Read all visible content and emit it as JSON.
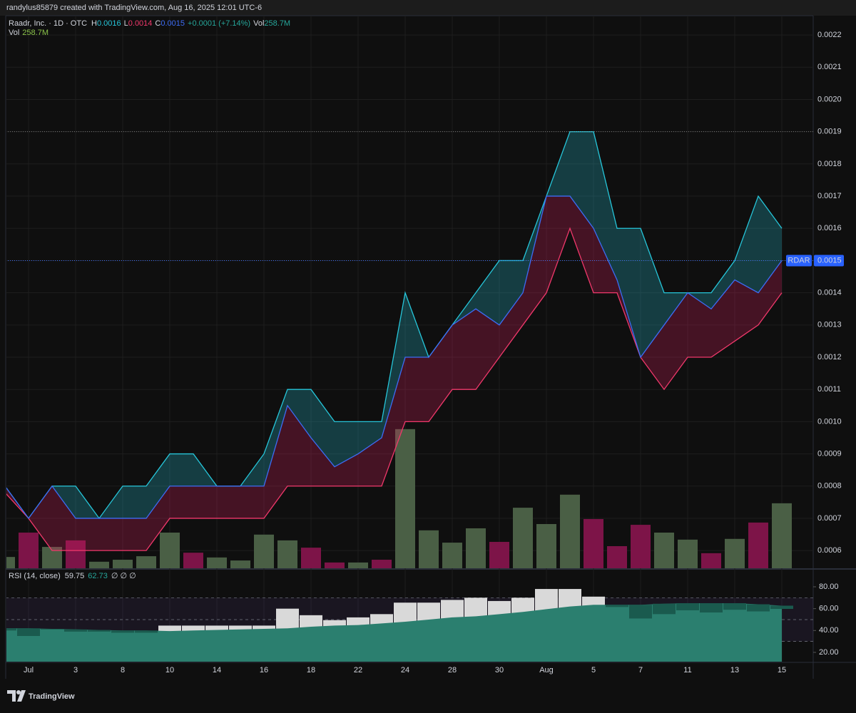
{
  "header": {
    "attribution": "randylus85879 created with TradingView.com, Aug 16, 2025 12:01 UTC-6"
  },
  "footer": {
    "brand": "TradingView"
  },
  "chart_data": {
    "type": "line",
    "symbol": "Raadr, Inc. · 1D · OTC",
    "change": "+0.0001 (+7.14%)",
    "ticker": "RDAR",
    "last_price": 0.0015,
    "high_line": 0.0019,
    "categories": [
      null,
      "Jul",
      null,
      "3",
      null,
      "8",
      null,
      "10",
      null,
      "14",
      null,
      "16",
      null,
      "18",
      null,
      "22",
      null,
      "24",
      null,
      "28",
      null,
      "30",
      null,
      "Aug",
      null,
      "5",
      null,
      "7",
      null,
      "11",
      null,
      "13",
      null,
      "15"
    ],
    "series": [
      {
        "name": "H",
        "color": "#26c6da",
        "values": [
          0.0008,
          0.0007,
          0.0008,
          0.0008,
          0.0007,
          0.0008,
          0.0008,
          0.0009,
          0.0009,
          0.0008,
          0.0008,
          0.0009,
          0.0011,
          0.0011,
          0.001,
          0.001,
          0.001,
          0.0014,
          0.0012,
          0.0013,
          0.0014,
          0.0015,
          0.0015,
          0.0017,
          0.0019,
          0.0019,
          0.0016,
          0.0016,
          0.0014,
          0.0014,
          0.0014,
          0.0015,
          0.0017,
          0.0016
        ]
      },
      {
        "name": "L",
        "color": "#f0386b",
        "values": [
          0.00078,
          0.0007,
          0.0006,
          0.0006,
          0.0006,
          0.0006,
          0.0006,
          0.0007,
          0.0007,
          0.0007,
          0.0007,
          0.0007,
          0.0008,
          0.0008,
          0.0008,
          0.0008,
          0.0008,
          0.001,
          0.001,
          0.0011,
          0.0011,
          0.0012,
          0.0013,
          0.0014,
          0.0016,
          0.0014,
          0.0014,
          0.0012,
          0.0011,
          0.0012,
          0.0012,
          0.00125,
          0.0013,
          0.0014
        ]
      },
      {
        "name": "C",
        "color": "#3d6cf5",
        "values": [
          0.0008,
          0.0007,
          0.0008,
          0.0007,
          0.0007,
          0.0007,
          0.0007,
          0.0008,
          0.0008,
          0.0008,
          0.0008,
          0.0008,
          0.00105,
          0.00095,
          0.00086,
          0.0009,
          0.00095,
          0.0012,
          0.0012,
          0.0013,
          0.00135,
          0.0013,
          0.0014,
          0.0017,
          0.0017,
          0.0016,
          0.00144,
          0.0012,
          0.0013,
          0.0014,
          0.00135,
          0.00144,
          0.0014,
          0.0015
        ]
      }
    ],
    "ylim": [
      0.000545,
      0.00226
    ],
    "yticks": [
      0.0006,
      0.0007,
      0.0008,
      0.0009,
      {
        "value": 0.001,
        "label": "0.0010"
      },
      0.0011,
      0.0012,
      0.0013,
      0.0014,
      0.0015,
      0.0016,
      0.0017,
      0.0018,
      0.0019,
      {
        "value": 0.002,
        "label": "0.0020"
      },
      0.0021,
      0.0022
    ],
    "grid": true,
    "volume": {
      "name": "Vol",
      "legend_value": "258.7M",
      "ylim": [
        0,
        2200
      ],
      "values": [
        45,
        142,
        85,
        111,
        26,
        34,
        48,
        142,
        62,
        43,
        31,
        134,
        111,
        82,
        23,
        23,
        34,
        554,
        151,
        102,
        159,
        105,
        241,
        176,
        293,
        196,
        88,
        173,
        142,
        114,
        60,
        117,
        182,
        258.7
      ],
      "colors": [
        "#4a5f45",
        "#7d1448",
        "#4a5f45",
        "#7d1448",
        "#4a5f45",
        "#4a5f45",
        "#4a5f45",
        "#4a5f45",
        "#7d1448",
        "#4a5f45",
        "#4a5f45",
        "#4a5f45",
        "#4a5f45",
        "#7d1448",
        "#7d1448",
        "#4a5f45",
        "#7d1448",
        "#4a5f45",
        "#4a5f45",
        "#4a5f45",
        "#4a5f45",
        "#7d1448",
        "#4a5f45",
        "#4a5f45",
        "#4a5f45",
        "#7d1448",
        "#7d1448",
        "#7d1448",
        "#4a5f45",
        "#4a5f45",
        "#7d1448",
        "#4a5f45",
        "#7d1448",
        "#4a5f45"
      ]
    },
    "rsi": {
      "title": "RSI (14, close)",
      "extra": "∅ ∅ ∅",
      "values": [
        40,
        35,
        41,
        39,
        39,
        38,
        38,
        44.5,
        44.5,
        44.5,
        44.5,
        44.5,
        60,
        54,
        49.5,
        52,
        55,
        65.5,
        65.5,
        68,
        70,
        67,
        70,
        78,
        78,
        71,
        61.5,
        51,
        55,
        58.5,
        56.5,
        59,
        57.5,
        59.75
      ],
      "ma_values": [
        42,
        42,
        41.5,
        41,
        40.5,
        40,
        40,
        39.5,
        40,
        40.5,
        41,
        41.5,
        42,
        43.5,
        44.5,
        45,
        46.5,
        48,
        50,
        52,
        53,
        55,
        57,
        59.5,
        62,
        63.5,
        63.5,
        63.5,
        64.5,
        65,
        65,
        65,
        64,
        62.73
      ],
      "ylim": [
        11.5,
        95
      ],
      "yticks": [
        {
          "value": 20,
          "label": "20.00"
        },
        {
          "value": 40,
          "label": "40.00"
        },
        {
          "value": 60,
          "label": "60.00"
        },
        {
          "value": 80,
          "label": "80.00"
        }
      ],
      "upper_band": 70,
      "middle_band": 50,
      "lower_band": 30
    }
  }
}
